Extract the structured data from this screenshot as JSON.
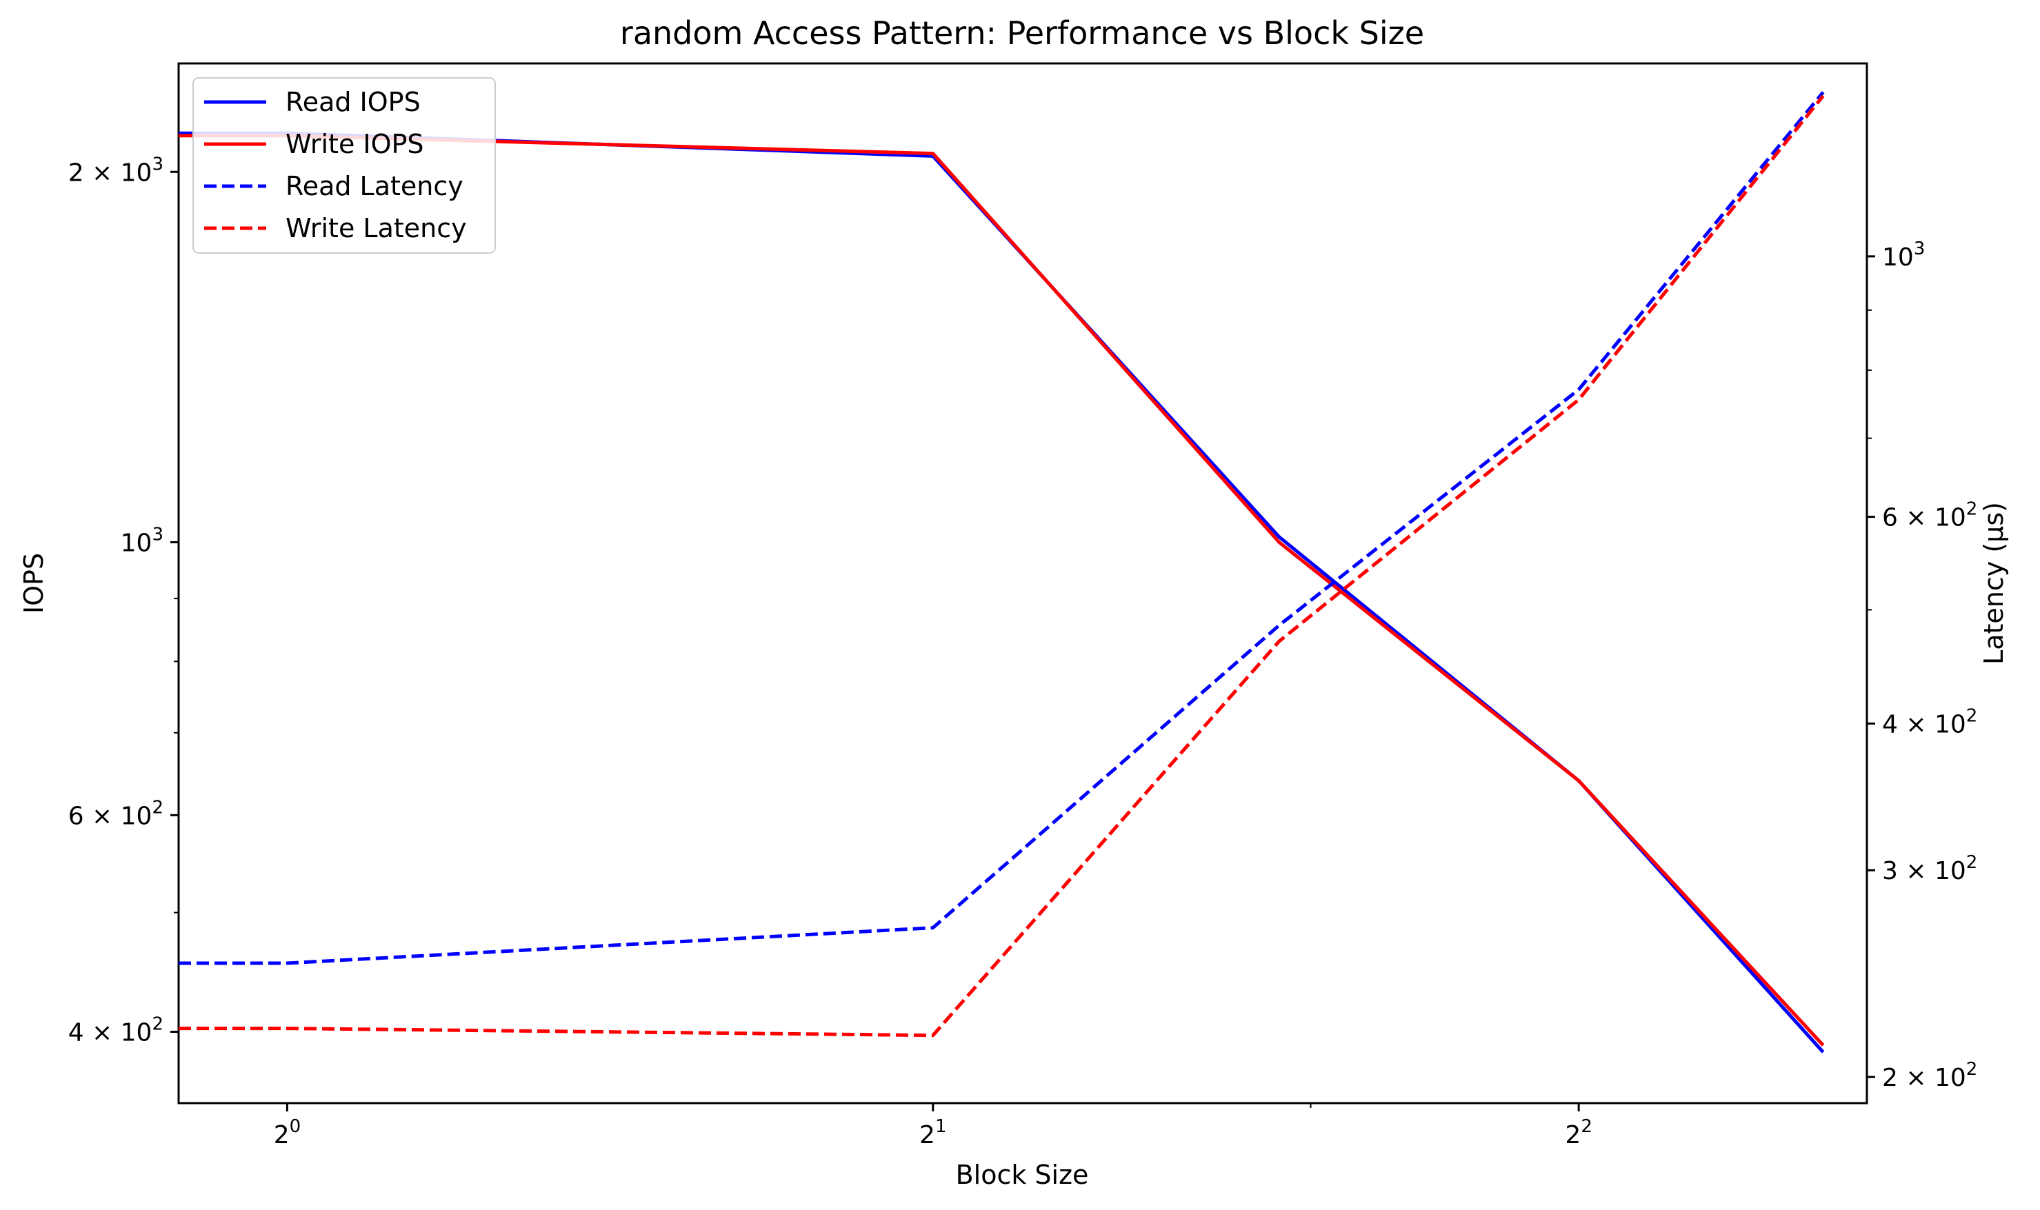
{
  "chart_data": {
    "type": "line",
    "title": "random Access Pattern: Performance vs Block Size",
    "xlabel": "Block Size",
    "ylabel_left": "IOPS",
    "ylabel_right": "Latency (µs)",
    "x_scale": "log2",
    "y_left_scale": "log",
    "y_right_scale": "log",
    "xlim": [
      0.89,
      5.45
    ],
    "ylim_left": [
      350,
      2450
    ],
    "ylim_right": [
      190,
      1460
    ],
    "x": [
      0.89,
      1,
      2,
      2.9,
      4,
      5.2
    ],
    "x_ticks": [
      {
        "base": "2",
        "exp": "0",
        "value": 1
      },
      {
        "base": "2",
        "exp": "1",
        "value": 2
      },
      {
        "base": "2",
        "exp": "2",
        "value": 4
      }
    ],
    "y_left_ticks": [
      {
        "mant": "4",
        "exp": "2",
        "value": 400,
        "label": "4 × 10"
      },
      {
        "mant": "6",
        "exp": "2",
        "value": 600,
        "label": "6 × 10"
      },
      {
        "mant": "",
        "exp": "3",
        "value": 1000,
        "label": "10"
      },
      {
        "mant": "2",
        "exp": "3",
        "value": 2000,
        "label": "2 × 10"
      }
    ],
    "y_right_ticks": [
      {
        "mant": "2",
        "exp": "2",
        "value": 200,
        "label": "2 × 10"
      },
      {
        "mant": "3",
        "exp": "2",
        "value": 300,
        "label": "3 × 10"
      },
      {
        "mant": "4",
        "exp": "2",
        "value": 400,
        "label": "4 × 10"
      },
      {
        "mant": "6",
        "exp": "2",
        "value": 600,
        "label": "6 × 10"
      },
      {
        "mant": "",
        "exp": "3",
        "value": 1000,
        "label": "10"
      }
    ],
    "legend_location": "upper left",
    "series": [
      {
        "name": "Read IOPS",
        "axis": "left",
        "style": "solid",
        "color": "#0000ff",
        "values": [
          2150,
          2150,
          2060,
          1010,
          640,
          385
        ]
      },
      {
        "name": "Write IOPS",
        "axis": "left",
        "style": "solid",
        "color": "#ff0000",
        "values": [
          2140,
          2140,
          2070,
          1000,
          640,
          390
        ]
      },
      {
        "name": "Read Latency",
        "axis": "right",
        "style": "dashed",
        "color": "#0000ff",
        "values": [
          250,
          250,
          268,
          485,
          770,
          1380
        ]
      },
      {
        "name": "Write Latency",
        "axis": "right",
        "style": "dashed",
        "color": "#ff0000",
        "values": [
          220,
          220,
          217,
          470,
          755,
          1370
        ]
      }
    ]
  }
}
